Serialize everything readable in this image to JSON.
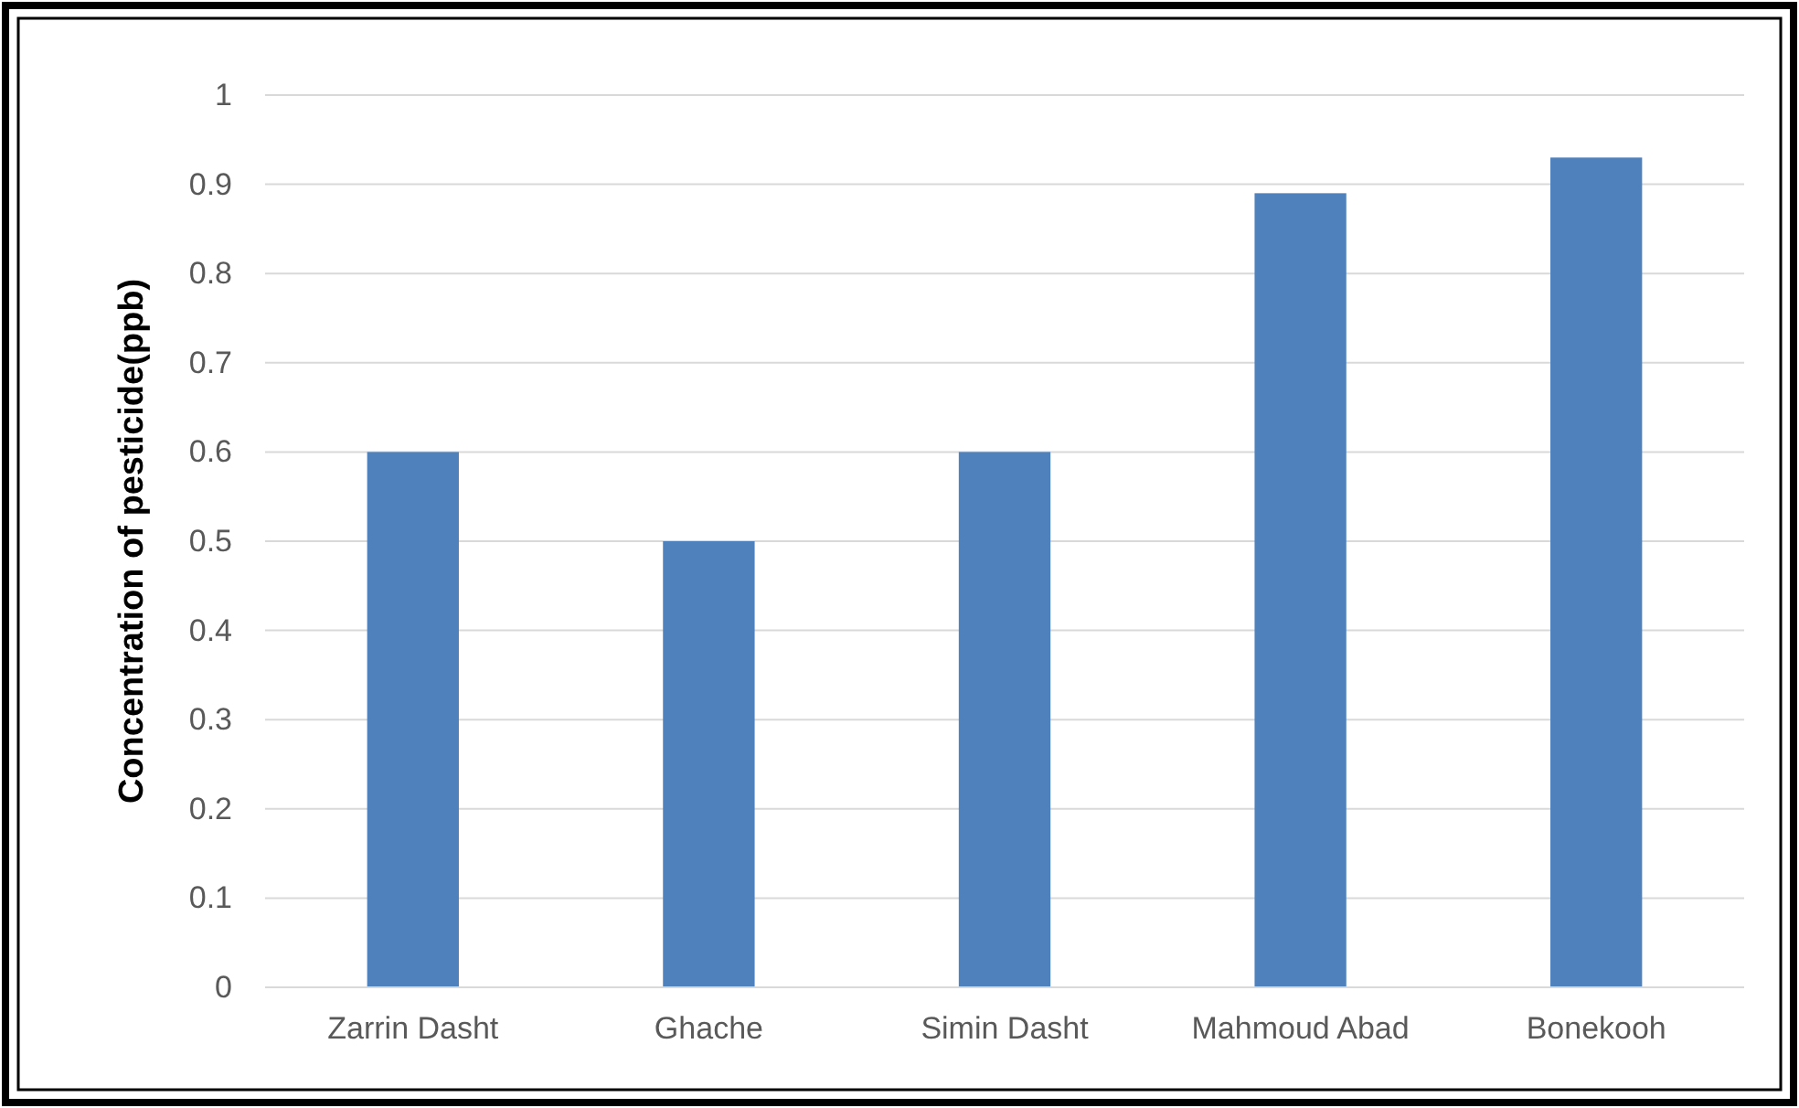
{
  "chart_data": {
    "type": "bar",
    "ylabel": "Concentration of pesticide(ppb)",
    "categories": [
      "Zarrin Dasht",
      "Ghache",
      "Simin Dasht",
      "Mahmoud Abad",
      "Bonekooh"
    ],
    "values": [
      0.6,
      0.5,
      0.6,
      0.89,
      0.93
    ],
    "color": "#4f81bd",
    "ylim": [
      0,
      1
    ],
    "yticks": [
      0,
      {
        "value": 0.1,
        "label": "0.1"
      },
      {
        "value": 0.2,
        "label": "0.2"
      },
      {
        "value": 0.3,
        "label": "0.3"
      },
      {
        "value": 0.4,
        "label": "0.4"
      },
      {
        "value": 0.5,
        "label": "0.5"
      },
      {
        "value": 0.6,
        "label": "0.6"
      },
      {
        "value": 0.7,
        "label": "0.7"
      },
      {
        "value": 0.8,
        "label": "0.8"
      },
      {
        "value": 0.9,
        "label": "0.9"
      },
      1
    ],
    "grid": "y"
  }
}
